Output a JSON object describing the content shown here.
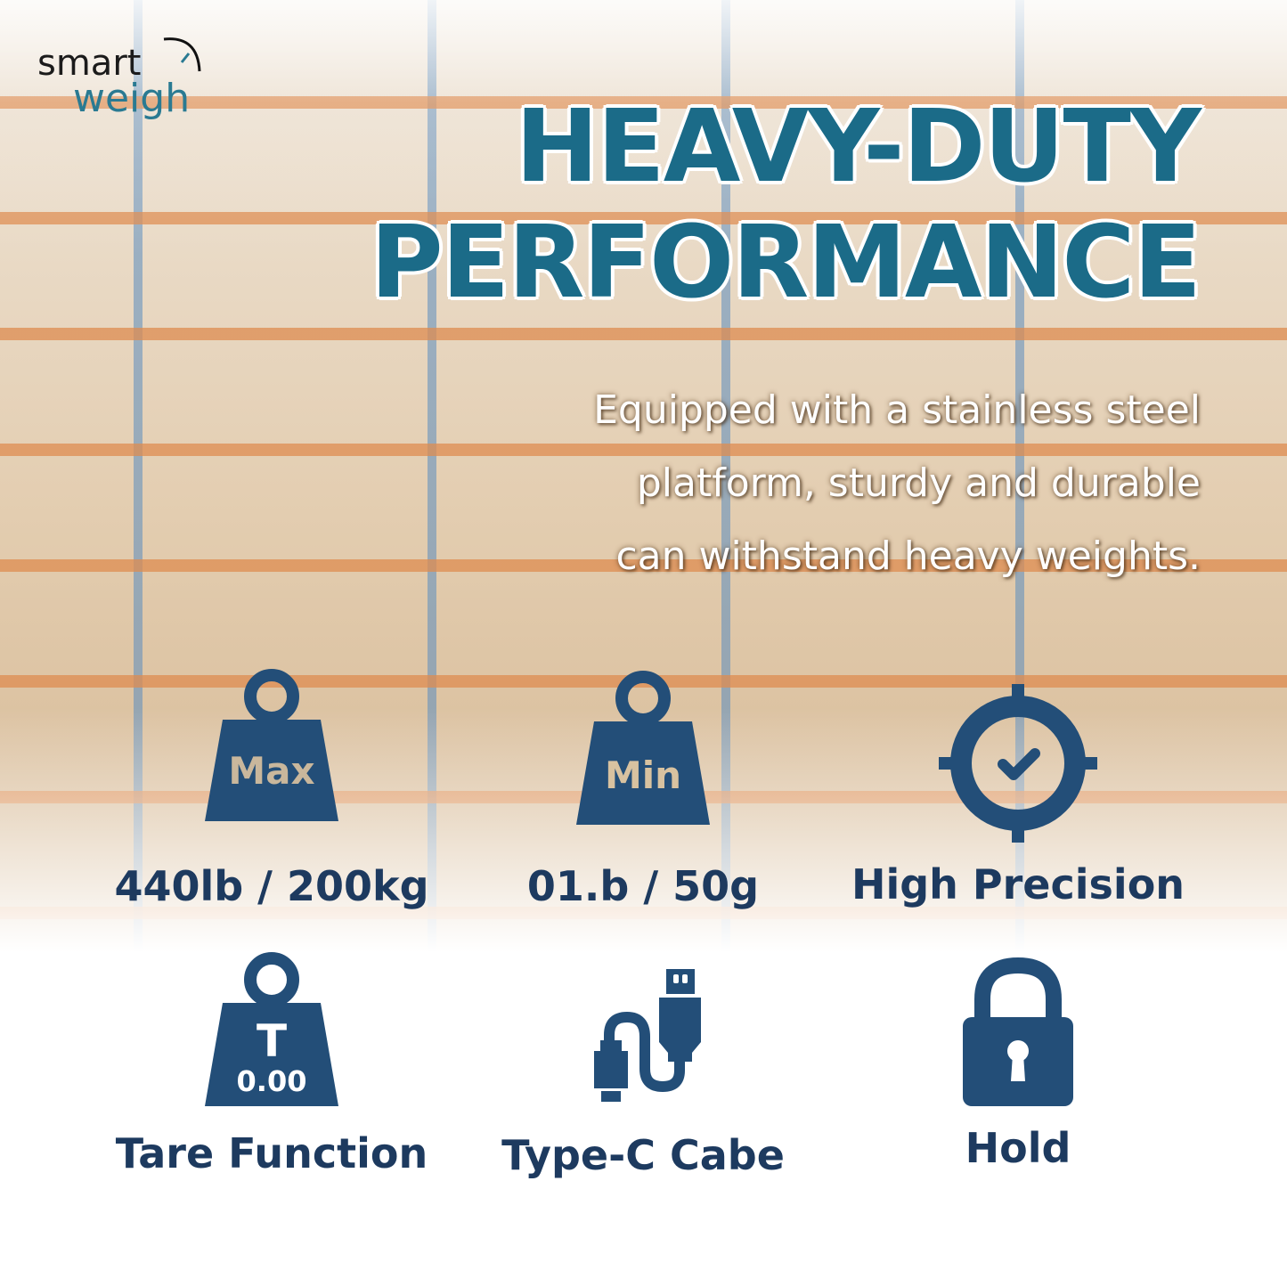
{
  "brand": {
    "line1": "smart",
    "line2": "weigh"
  },
  "headline": {
    "line1": "HEAVY-DUTY",
    "line2": "PERFORMANCE"
  },
  "description": [
    "Equipped with a stainless steel",
    "platform, sturdy and durable",
    "can withstand heavy weights."
  ],
  "colors": {
    "title": "#1b6b88",
    "icon": "#234e78",
    "label": "#1d3a5f"
  },
  "features": [
    {
      "icon": "weight-max-icon",
      "icon_text": "Max",
      "label": "440lb / 200kg"
    },
    {
      "icon": "weight-min-icon",
      "icon_text": "Min",
      "label": "01.b / 50g"
    },
    {
      "icon": "target-check-icon",
      "label": "High Precision"
    },
    {
      "icon": "weight-tare-icon",
      "icon_text": "T",
      "icon_subtext": "0.00",
      "label": "Tare Function"
    },
    {
      "icon": "usb-cable-icon",
      "label": "Type-C Cabe"
    },
    {
      "icon": "padlock-icon",
      "label": "Hold"
    }
  ]
}
